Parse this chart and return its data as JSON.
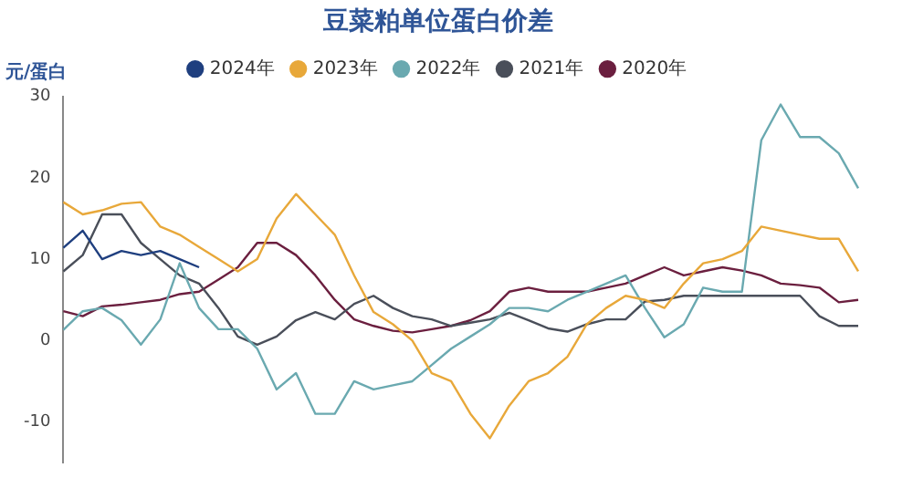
{
  "chart_data": {
    "type": "line",
    "title": "豆菜粕单位蛋白价差",
    "ylabel": "元/蛋白",
    "categories": [
      null,
      null,
      null,
      null,
      null,
      null,
      null,
      null,
      null,
      null,
      null,
      null,
      null,
      null,
      null,
      null,
      null,
      null,
      null,
      null,
      null,
      null,
      null,
      null,
      null,
      null,
      null,
      null,
      null,
      null,
      null,
      null,
      null,
      null,
      null,
      null,
      null,
      null,
      null,
      null,
      null,
      null
    ],
    "series": [
      {
        "name": "2024年",
        "color": "#1f3f7f",
        "values": [
          11.4,
          13.5,
          10,
          11,
          10.5,
          11,
          10,
          9,
          null,
          null,
          null,
          null,
          null,
          null,
          null,
          null,
          null,
          null,
          null,
          null,
          null,
          null,
          null,
          null,
          null,
          null,
          null,
          null,
          null,
          null,
          null,
          null,
          null,
          null,
          null,
          null,
          null,
          null,
          null,
          null,
          null,
          null
        ]
      },
      {
        "name": "2023年",
        "color": "#e8a83a",
        "values": [
          17,
          15.5,
          16,
          16.8,
          17,
          14,
          13,
          11.5,
          10,
          8.5,
          10,
          15,
          18,
          15.5,
          13,
          8,
          3.5,
          2,
          0,
          -4,
          -5,
          -9,
          -12,
          -8,
          -5,
          -4,
          -2,
          2,
          4,
          5.5,
          5,
          4,
          7,
          9.5,
          10,
          11,
          14,
          13.5,
          13,
          12.5,
          12.5,
          8.5
        ]
      },
      {
        "name": "2022年",
        "color": "#6aa9b0",
        "values": [
          1.3,
          3.6,
          4,
          2.5,
          -0.5,
          2.6,
          9.5,
          4,
          1.4,
          1.4,
          -1,
          -6,
          -4,
          -9,
          -9,
          -5,
          -6,
          -5.5,
          -5,
          -3,
          -1,
          0.5,
          2,
          4,
          4,
          3.6,
          5,
          6,
          7,
          8,
          4,
          0.4,
          2,
          6.5,
          6,
          6,
          24.6,
          29,
          25,
          25,
          23,
          18.7
        ]
      },
      {
        "name": "2021年",
        "color": "#4a4f5a",
        "values": [
          8.5,
          10.5,
          15.5,
          15.5,
          12,
          10,
          8,
          7,
          4,
          0.5,
          -0.5,
          0.5,
          2.5,
          3.5,
          2.6,
          4.5,
          5.5,
          4,
          3,
          2.6,
          1.8,
          2.2,
          2.6,
          3.4,
          2.5,
          1.5,
          1.1,
          2,
          2.6,
          2.6,
          4.8,
          5,
          5.5,
          5.5,
          5.5,
          5.5,
          5.5,
          5.5,
          5.5,
          3,
          1.8,
          1.8
        ]
      },
      {
        "name": "2020年",
        "color": "#6b1f3f",
        "values": [
          3.6,
          3,
          4.2,
          4.4,
          4.7,
          5,
          5.7,
          6,
          7.5,
          9,
          12,
          12,
          10.5,
          8,
          5,
          2.6,
          1.8,
          1.2,
          1,
          1.4,
          1.8,
          2.5,
          3.6,
          6,
          6.5,
          6,
          6,
          6,
          6.5,
          7,
          8,
          9,
          8,
          8.5,
          9,
          8.6,
          8,
          7,
          6.8,
          6.5,
          4.7,
          5
        ]
      }
    ],
    "ylim": [
      -15,
      30
    ],
    "yticks": [
      -10,
      0,
      10,
      20,
      30
    ],
    "grid": false,
    "legend": "top",
    "tick_labels": "y",
    "line_style": "solid"
  }
}
